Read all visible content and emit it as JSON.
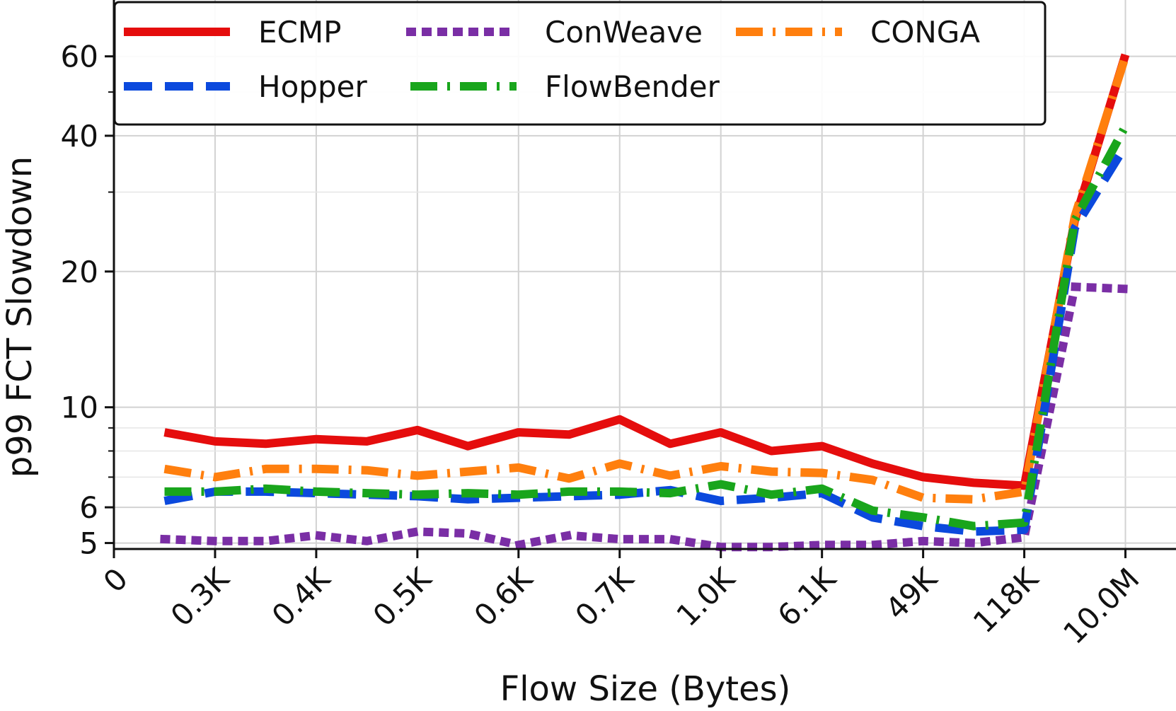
{
  "chart_data": {
    "type": "line",
    "xlabel": "Flow Size (Bytes)",
    "ylabel": "p99 FCT Slowdown",
    "yscale": "log",
    "ylim": [
      4.85,
      80
    ],
    "y_ticks_major": [
      5,
      6,
      10,
      20,
      40,
      60
    ],
    "y_ticks_minor": [
      7,
      8,
      9,
      30,
      50
    ],
    "xlim": [
      0,
      10.5
    ],
    "x_ticks": [
      {
        "pos": 0,
        "label": "0"
      },
      {
        "pos": 1,
        "label": "0.3K"
      },
      {
        "pos": 2,
        "label": "0.4K"
      },
      {
        "pos": 3,
        "label": "0.5K"
      },
      {
        "pos": 4,
        "label": "0.6K"
      },
      {
        "pos": 5,
        "label": "0.7K"
      },
      {
        "pos": 6,
        "label": "1.0K"
      },
      {
        "pos": 7,
        "label": "6.1K"
      },
      {
        "pos": 8,
        "label": "49K"
      },
      {
        "pos": 9,
        "label": "118K"
      },
      {
        "pos": 10,
        "label": "10.0M"
      }
    ],
    "grid": true,
    "legend_position": "top, 3 columns",
    "series": [
      {
        "name": "ECMP",
        "color": "#e50d0d",
        "dash": "solid",
        "x": [
          0.5,
          1,
          1.5,
          2,
          2.5,
          3,
          3.5,
          4,
          4.5,
          5,
          5.5,
          6,
          6.5,
          7,
          7.5,
          8,
          8.5,
          9,
          9.5,
          10
        ],
        "values": [
          8.8,
          8.4,
          8.3,
          8.5,
          8.4,
          8.9,
          8.2,
          8.8,
          8.7,
          9.4,
          8.3,
          8.8,
          8.0,
          8.2,
          7.5,
          7.0,
          6.8,
          6.7,
          26.0,
          60.5
        ]
      },
      {
        "name": "ConWeave",
        "color": "#7a2ea5",
        "dash": "dot",
        "x": [
          0.5,
          1,
          1.5,
          2,
          2.5,
          3,
          3.5,
          4,
          4.5,
          5,
          5.5,
          6,
          6.5,
          7,
          7.5,
          8,
          8.5,
          9,
          9.5,
          10
        ],
        "values": [
          5.1,
          5.05,
          5.05,
          5.2,
          5.05,
          5.3,
          5.25,
          4.95,
          5.2,
          5.1,
          5.1,
          4.9,
          4.9,
          4.95,
          4.95,
          5.05,
          5.0,
          5.15,
          18.5,
          18.3
        ]
      },
      {
        "name": "CONGA",
        "color": "#ff7f0e",
        "dash": "dashdot",
        "x": [
          0.5,
          1,
          1.5,
          2,
          2.5,
          3,
          3.5,
          4,
          4.5,
          5,
          5.5,
          6,
          6.5,
          7,
          7.5,
          8,
          8.5,
          9,
          9.5,
          10
        ],
        "values": [
          7.3,
          7.0,
          7.3,
          7.3,
          7.25,
          7.05,
          7.2,
          7.35,
          6.95,
          7.5,
          7.05,
          7.4,
          7.2,
          7.15,
          6.9,
          6.3,
          6.25,
          6.5,
          26.5,
          60.0
        ]
      },
      {
        "name": "Hopper",
        "color": "#0b49dd",
        "dash": "dash",
        "x": [
          0.5,
          1,
          1.5,
          2,
          2.5,
          3,
          3.5,
          4,
          4.5,
          5,
          5.5,
          6,
          6.5,
          7,
          7.5,
          8,
          8.5,
          9,
          9.5,
          10
        ],
        "values": [
          6.2,
          6.5,
          6.5,
          6.45,
          6.4,
          6.35,
          6.25,
          6.3,
          6.35,
          6.4,
          6.55,
          6.2,
          6.3,
          6.45,
          5.7,
          5.45,
          5.3,
          5.35,
          25.0,
          38.0
        ]
      },
      {
        "name": "FlowBender",
        "color": "#19a51c",
        "dash": "dashdot",
        "x": [
          0.5,
          1,
          1.5,
          2,
          2.5,
          3,
          3.5,
          4,
          4.5,
          5,
          5.5,
          6,
          6.5,
          7,
          7.5,
          8,
          8.5,
          9,
          9.5,
          10
        ],
        "values": [
          6.5,
          6.5,
          6.6,
          6.5,
          6.45,
          6.4,
          6.45,
          6.4,
          6.5,
          6.5,
          6.45,
          6.75,
          6.4,
          6.6,
          5.9,
          5.7,
          5.45,
          5.55,
          26.0,
          42.0
        ]
      }
    ]
  }
}
